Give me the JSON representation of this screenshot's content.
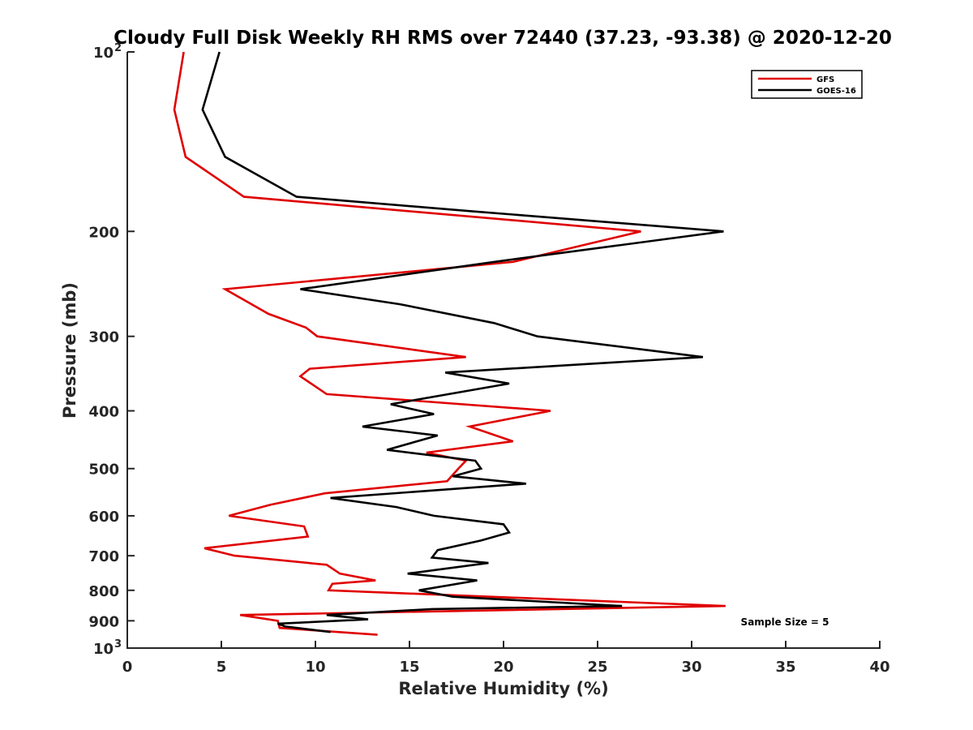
{
  "chart_data": {
    "type": "line",
    "title": "Cloudy Full Disk Weekly RH RMS over 72440 (37.23, -93.38) @ 2020-12-20",
    "xlabel": "Relative Humidity (%)",
    "ylabel": "Pressure (mb)",
    "xlim": [
      0,
      40
    ],
    "ylim": [
      100,
      1000
    ],
    "y_scale": "log",
    "y_reversed": true,
    "grid": false,
    "legend_position": "top-right",
    "x_ticks": [
      "0",
      "5",
      "10",
      "15",
      "20",
      "25",
      "30",
      "35",
      "40"
    ],
    "y_ticks": [
      {
        "value": 100,
        "label": "10",
        "sup": "2"
      },
      {
        "value": 200,
        "label": "200"
      },
      {
        "value": 300,
        "label": "300"
      },
      {
        "value": 400,
        "label": "400"
      },
      {
        "value": 500,
        "label": "500"
      },
      {
        "value": 600,
        "label": "600"
      },
      {
        "value": 700,
        "label": "700"
      },
      {
        "value": 800,
        "label": "800"
      },
      {
        "value": 900,
        "label": "900"
      },
      {
        "value": 1000,
        "label": "10",
        "sup": "3"
      }
    ],
    "annotation": "Sample Size = 5",
    "series": [
      {
        "name": "GFS",
        "color": "#e00000",
        "points": [
          [
            3.0,
            100
          ],
          [
            2.5,
            125
          ],
          [
            3.1,
            150
          ],
          [
            6.2,
            175
          ],
          [
            15.0,
            185
          ],
          [
            27.3,
            200
          ],
          [
            20.5,
            225
          ],
          [
            5.2,
            250
          ],
          [
            7.5,
            275
          ],
          [
            9.5,
            290
          ],
          [
            10.1,
            300
          ],
          [
            18.0,
            325
          ],
          [
            9.7,
            340
          ],
          [
            9.2,
            350
          ],
          [
            10.6,
            375
          ],
          [
            22.5,
            400
          ],
          [
            18.2,
            425
          ],
          [
            20.5,
            450
          ],
          [
            15.9,
            470
          ],
          [
            18.0,
            485
          ],
          [
            17.6,
            500
          ],
          [
            17.0,
            525
          ],
          [
            10.5,
            550
          ],
          [
            7.6,
            575
          ],
          [
            5.4,
            600
          ],
          [
            9.4,
            625
          ],
          [
            9.6,
            650
          ],
          [
            4.1,
            680
          ],
          [
            5.7,
            700
          ],
          [
            10.6,
            725
          ],
          [
            11.3,
            750
          ],
          [
            13.2,
            770
          ],
          [
            10.9,
            780
          ],
          [
            10.7,
            800
          ],
          [
            31.8,
            850
          ],
          [
            6.0,
            880
          ],
          [
            8.0,
            900
          ],
          [
            8.1,
            925
          ],
          [
            13.3,
            950
          ]
        ]
      },
      {
        "name": "GOES-16",
        "color": "#000000",
        "points": [
          [
            4.9,
            100
          ],
          [
            4.0,
            125
          ],
          [
            5.2,
            150
          ],
          [
            9.0,
            175
          ],
          [
            18.3,
            185
          ],
          [
            31.7,
            200
          ],
          [
            19.5,
            225
          ],
          [
            9.2,
            250
          ],
          [
            14.5,
            265
          ],
          [
            19.5,
            285
          ],
          [
            21.8,
            300
          ],
          [
            30.6,
            325
          ],
          [
            16.9,
            345
          ],
          [
            20.3,
            360
          ],
          [
            14.0,
            390
          ],
          [
            16.3,
            405
          ],
          [
            12.5,
            425
          ],
          [
            16.5,
            440
          ],
          [
            13.8,
            465
          ],
          [
            18.5,
            485
          ],
          [
            18.8,
            500
          ],
          [
            17.3,
            515
          ],
          [
            21.2,
            530
          ],
          [
            10.8,
            560
          ],
          [
            14.3,
            580
          ],
          [
            16.3,
            600
          ],
          [
            20.0,
            620
          ],
          [
            20.3,
            640
          ],
          [
            18.8,
            660
          ],
          [
            16.5,
            685
          ],
          [
            16.2,
            705
          ],
          [
            19.2,
            720
          ],
          [
            14.9,
            750
          ],
          [
            18.6,
            770
          ],
          [
            15.5,
            800
          ],
          [
            17.3,
            820
          ],
          [
            26.3,
            850
          ],
          [
            16.2,
            860
          ],
          [
            10.6,
            880
          ],
          [
            12.8,
            895
          ],
          [
            8.0,
            910
          ],
          [
            8.4,
            920
          ],
          [
            10.8,
            940
          ]
        ]
      }
    ]
  }
}
